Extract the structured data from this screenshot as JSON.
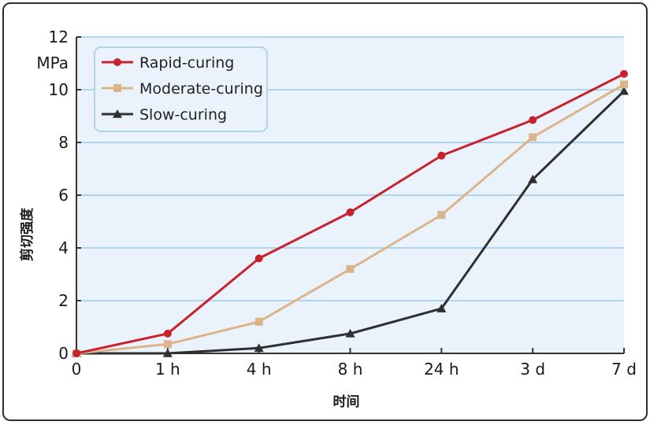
{
  "chart_data": {
    "type": "line",
    "unit": "MPa",
    "ylabel": "剪切强度",
    "xlabel": "时间",
    "categories": [
      "0",
      "1 h",
      "4 h",
      "8 h",
      "24 h",
      "3 d",
      "7 d"
    ],
    "ylim": [
      0,
      12
    ],
    "yticks": [
      "0",
      "2",
      "4",
      "6",
      "8",
      "10",
      "12"
    ],
    "grid": "horizontal",
    "legend_position": "top-left",
    "series": [
      {
        "name": "Rapid-curing",
        "color": "#c8232c",
        "marker": "circle",
        "values": [
          0,
          0.75,
          3.6,
          5.35,
          7.5,
          8.85,
          10.6
        ]
      },
      {
        "name": "Moderate-curing",
        "color": "#dcb48c",
        "marker": "square",
        "values": [
          0,
          0.35,
          1.2,
          3.2,
          5.25,
          8.2,
          10.2
        ]
      },
      {
        "name": "Slow-curing",
        "color": "#2f2f2f",
        "marker": "triangle",
        "values": [
          0,
          0,
          0.2,
          0.75,
          1.7,
          6.6,
          9.95
        ]
      }
    ]
  }
}
